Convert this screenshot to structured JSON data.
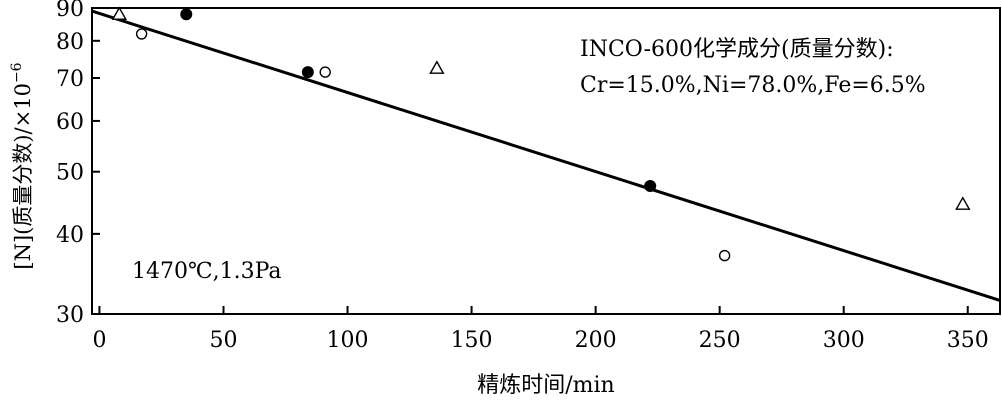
{
  "chart_data": {
    "type": "scatter",
    "ylabel": "[N](质量分数)/×10",
    "ylabel_exp": "−6",
    "xlabel": "精炼时间/min",
    "x_ticks": [
      "0",
      "50",
      "100",
      "150",
      "200",
      "250",
      "300",
      "350"
    ],
    "y_ticks": [
      "30",
      "40",
      "50",
      "60",
      "70",
      "80",
      "90"
    ],
    "xlim": [
      -3,
      363
    ],
    "ylim": [
      30,
      90
    ],
    "y_scale": "log",
    "annotation_title": "INCO-600化学成分(质量分数):",
    "annotation_composition": "Cr=15.0%,Ni=78.0%,Fe=6.5%",
    "annotation_conditions": "1470℃,1.3Pa",
    "series": [
      {
        "marker": "triangle-open",
        "x": [
          8,
          136,
          348
        ],
        "y": [
          88,
          72.5,
          44.5
        ]
      },
      {
        "marker": "circle-filled",
        "x": [
          35,
          84,
          222
        ],
        "y": [
          88,
          71.5,
          47.5
        ]
      },
      {
        "marker": "circle-open",
        "x": [
          17,
          91,
          252
        ],
        "y": [
          82,
          71.5,
          37
        ]
      }
    ],
    "trend_line": {
      "x": [
        -3,
        363
      ],
      "y": [
        89,
        31.5
      ]
    }
  }
}
